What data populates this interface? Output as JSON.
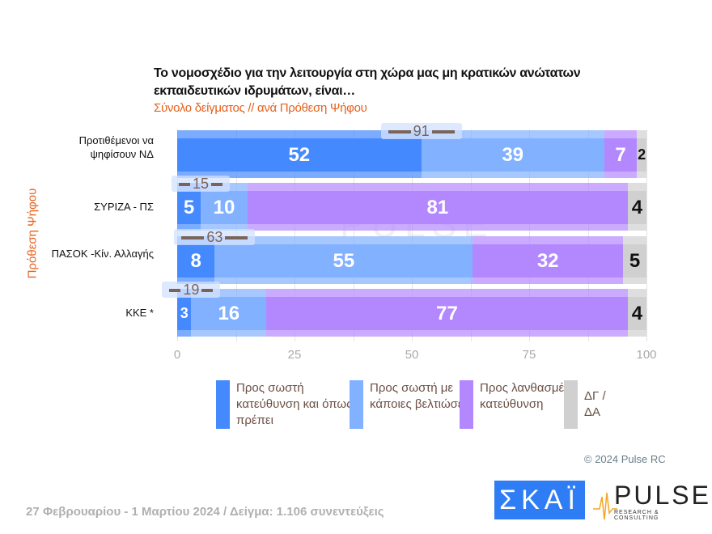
{
  "chart_data": {
    "type": "bar",
    "orientation": "horizontal-stacked",
    "title": "Το νομοσχέδιο για την λειτουργία στη χώρα μας μη κρατικών ανώτατων εκπαιδευτικών ιδρυμάτων, είναι…",
    "subtitle": "Σύνολο δείγματος // ανά Πρόθεση Ψήφου",
    "ylabel": "Πρόθεση Ψήφου",
    "xlim": [
      0,
      100
    ],
    "xticks": [
      "0",
      "25",
      "50",
      "75",
      "100"
    ],
    "categories": [
      "Προτιθέμενοι να ψηφίσουν ΝΔ",
      "ΣΥΡΙΖΑ - ΠΣ",
      "ΠΑΣΟΚ -Κίν. Αλλαγής",
      "ΚΚΕ *"
    ],
    "series": [
      {
        "name": "Προς σωστή κατεύθυνση και όπως πρέπει",
        "color": "#4589ff",
        "values": [
          52,
          5,
          8,
          3
        ]
      },
      {
        "name": "Προς σωστή με κάποιες βελτιώσεις",
        "color": "#82b1ff",
        "values": [
          39,
          10,
          55,
          16
        ]
      },
      {
        "name": "Προς λανθασμένη κατεύθυνση",
        "color": "#b388ff",
        "values": [
          7,
          81,
          32,
          77
        ]
      },
      {
        "name": "ΔΓ / ΔΑ",
        "color": "#d0d0d0",
        "values": [
          2,
          4,
          5,
          4
        ]
      }
    ],
    "subtotals": [
      91,
      15,
      63,
      19
    ],
    "legend": "bottom",
    "grid": true
  },
  "copyright": "© 2024 Pulse RC",
  "footer": "27 Φεβρουαρίου - 1 Μαρτίου 2024  /  Δείγμα:  1.106 συνεντεύξεις",
  "logos": {
    "skai": "ΣΚΑΪ",
    "pulse": "PULSE",
    "pulse_sub": "RESEARCH & CONSULTING"
  }
}
